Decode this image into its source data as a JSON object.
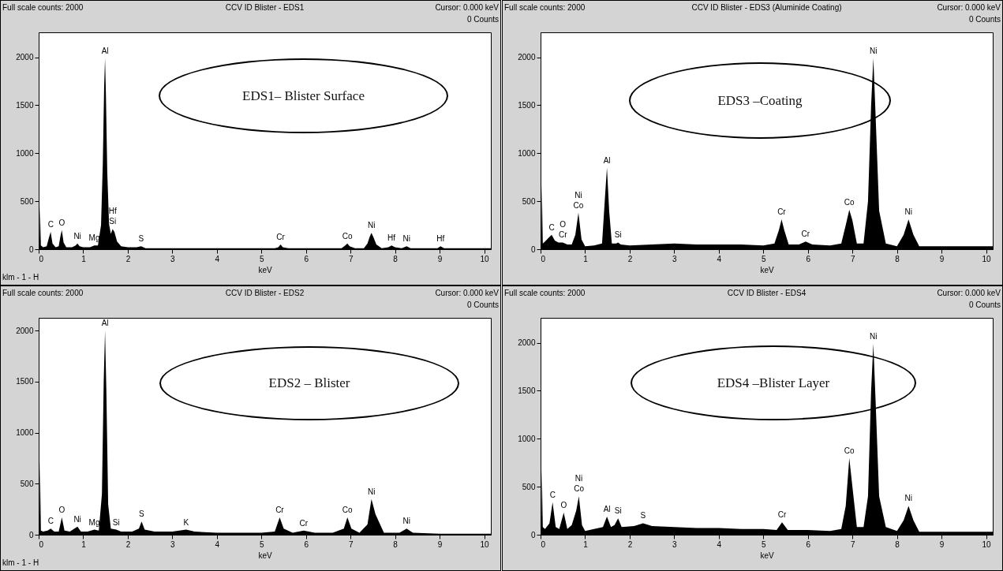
{
  "chart_data": [
    {
      "type": "area",
      "title": "CCV ID Blister - EDS1",
      "xlabel": "keV",
      "xlim": [
        0,
        10.15
      ],
      "xticks": [
        0,
        1,
        2,
        3,
        4,
        5,
        6,
        7,
        8,
        9,
        10
      ],
      "ylim": [
        0,
        2260
      ],
      "yticks": [
        0,
        500,
        1000,
        1500,
        2000
      ],
      "x": [
        0,
        0.02,
        0.03,
        0.05,
        0.1,
        0.18,
        0.23,
        0.27,
        0.31,
        0.38,
        0.45,
        0.49,
        0.52,
        0.56,
        0.62,
        0.75,
        0.83,
        0.87,
        0.92,
        1.0,
        1.15,
        1.25,
        1.33,
        1.4,
        1.44,
        1.47,
        1.49,
        1.51,
        1.54,
        1.58,
        1.62,
        1.66,
        1.7,
        1.76,
        1.85,
        2.0,
        2.2,
        2.3,
        2.4,
        2.7,
        3.0,
        3.5,
        4.0,
        4.5,
        5.0,
        5.3,
        5.38,
        5.43,
        5.48,
        5.6,
        6.0,
        6.5,
        6.8,
        6.88,
        6.93,
        6.98,
        7.1,
        7.3,
        7.38,
        7.43,
        7.47,
        7.52,
        7.58,
        7.7,
        7.85,
        7.92,
        8.0,
        8.15,
        8.26,
        8.35,
        8.6,
        8.95,
        9.02,
        9.1,
        9.5,
        10.0,
        10.15
      ],
      "series": [
        {
          "color": "#000000",
          "values": [
            0,
            100,
            450,
            40,
            20,
            30,
            120,
            180,
            60,
            20,
            30,
            140,
            200,
            70,
            20,
            20,
            40,
            60,
            30,
            20,
            20,
            40,
            40,
            250,
            900,
            1700,
            1990,
            1600,
            800,
            260,
            160,
            210,
            180,
            80,
            30,
            20,
            20,
            30,
            10,
            10,
            10,
            10,
            10,
            10,
            10,
            10,
            20,
            50,
            20,
            10,
            10,
            10,
            10,
            40,
            60,
            30,
            10,
            10,
            60,
            130,
            170,
            120,
            50,
            10,
            20,
            40,
            20,
            10,
            30,
            10,
            10,
            10,
            30,
            10,
            10,
            10,
            10
          ]
        }
      ],
      "annotations": [
        "Full scale counts: 2000",
        "Cursor:   0.000 keV",
        "0 Counts",
        "klm - 1 - H",
        "EDS1– Blister Surface",
        {
          "text": "C",
          "x": 0.27,
          "y": 180
        },
        {
          "text": "O",
          "x": 0.52,
          "y": 200
        },
        {
          "text": "Ni",
          "x": 0.87,
          "y": 60
        },
        {
          "text": "Mg",
          "x": 1.25,
          "y": 40
        },
        {
          "text": "Al",
          "x": 1.49,
          "y": 1990
        },
        {
          "text": "Si",
          "x": 1.66,
          "y": 210
        },
        {
          "text": "Hf",
          "x": 1.66,
          "y": 210
        },
        {
          "text": "S",
          "x": 2.3,
          "y": 30
        },
        {
          "text": "Cr",
          "x": 5.43,
          "y": 50
        },
        {
          "text": "Co",
          "x": 6.93,
          "y": 60
        },
        {
          "text": "Ni",
          "x": 7.47,
          "y": 170
        },
        {
          "text": "Hf",
          "x": 7.92,
          "y": 40
        },
        {
          "text": "Ni",
          "x": 8.26,
          "y": 30
        },
        {
          "text": "Hf",
          "x": 9.02,
          "y": 30
        }
      ]
    },
    {
      "type": "area",
      "title": "CCV ID Blister - EDS3 (Aluminide Coating)",
      "xlabel": "keV",
      "xlim": [
        0,
        10.15
      ],
      "xticks": [
        0,
        1,
        2,
        3,
        4,
        5,
        6,
        7,
        8,
        9,
        10
      ],
      "ylim": [
        0,
        2260
      ],
      "yticks": [
        0,
        500,
        1000,
        1500,
        2000
      ],
      "x": [
        0,
        0.02,
        0.03,
        0.05,
        0.1,
        0.18,
        0.25,
        0.32,
        0.4,
        0.5,
        0.6,
        0.7,
        0.78,
        0.85,
        0.92,
        1.0,
        1.2,
        1.38,
        1.44,
        1.49,
        1.54,
        1.6,
        1.7,
        1.74,
        1.8,
        2.0,
        2.5,
        3.0,
        3.5,
        4.0,
        4.5,
        5.0,
        5.25,
        5.35,
        5.41,
        5.47,
        5.57,
        5.8,
        5.95,
        6.1,
        6.5,
        6.75,
        6.85,
        6.93,
        7.0,
        7.1,
        7.25,
        7.35,
        7.42,
        7.47,
        7.52,
        7.6,
        7.75,
        8.0,
        8.15,
        8.26,
        8.37,
        8.5,
        9.0,
        9.5,
        10.0,
        10.15
      ],
      "series": [
        {
          "color": "#000000",
          "values": [
            0,
            200,
            670,
            60,
            80,
            120,
            150,
            90,
            70,
            70,
            50,
            50,
            150,
            380,
            100,
            30,
            40,
            60,
            500,
            850,
            400,
            60,
            60,
            70,
            50,
            40,
            50,
            60,
            50,
            50,
            50,
            40,
            60,
            200,
            310,
            200,
            50,
            50,
            80,
            50,
            40,
            60,
            250,
            410,
            300,
            60,
            60,
            500,
            1500,
            1990,
            1400,
            400,
            60,
            30,
            150,
            310,
            150,
            30,
            30,
            30,
            30,
            30
          ]
        }
      ],
      "annotations": [
        "Full scale counts: 2000",
        "Cursor:   0.000 keV",
        "0 Counts",
        "EDS3 –Coating",
        {
          "text": "C",
          "x": 0.25,
          "y": 150
        },
        {
          "text": "Cr",
          "x": 0.5,
          "y": 70
        },
        {
          "text": "O",
          "x": 0.5,
          "y": 70
        },
        {
          "text": "Co",
          "x": 0.85,
          "y": 380
        },
        {
          "text": "Ni",
          "x": 0.85,
          "y": 380
        },
        {
          "text": "Al",
          "x": 1.49,
          "y": 850
        },
        {
          "text": "Si",
          "x": 1.74,
          "y": 70
        },
        {
          "text": "Cr",
          "x": 5.41,
          "y": 310
        },
        {
          "text": "Cr",
          "x": 5.95,
          "y": 80
        },
        {
          "text": "Co",
          "x": 6.93,
          "y": 410
        },
        {
          "text": "Ni",
          "x": 7.47,
          "y": 1990
        },
        {
          "text": "Ni",
          "x": 8.26,
          "y": 310
        }
      ]
    },
    {
      "type": "area",
      "title": "CCV ID Blister - EDS2",
      "xlabel": "keV",
      "xlim": [
        0,
        10.15
      ],
      "xticks": [
        0,
        1,
        2,
        3,
        4,
        5,
        6,
        7,
        8,
        9,
        10
      ],
      "ylim": [
        0,
        2125
      ],
      "yticks": [
        0,
        500,
        1000,
        1500,
        2000
      ],
      "x": [
        0,
        0.02,
        0.03,
        0.05,
        0.1,
        0.2,
        0.27,
        0.35,
        0.45,
        0.52,
        0.58,
        0.7,
        0.87,
        0.95,
        1.1,
        1.25,
        1.35,
        1.42,
        1.46,
        1.49,
        1.52,
        1.56,
        1.62,
        1.74,
        1.85,
        2.1,
        2.25,
        2.31,
        2.38,
        2.6,
        3.0,
        3.31,
        3.5,
        4.0,
        4.5,
        5.0,
        5.3,
        5.41,
        5.5,
        5.7,
        5.95,
        6.2,
        6.6,
        6.85,
        6.93,
        7.02,
        7.2,
        7.38,
        7.47,
        7.56,
        7.75,
        8.1,
        8.26,
        8.4,
        9.0,
        9.5,
        10.0,
        10.15
      ],
      "series": [
        {
          "color": "#000000",
          "values": [
            0,
            200,
            730,
            40,
            30,
            40,
            60,
            30,
            30,
            170,
            40,
            30,
            80,
            30,
            30,
            50,
            40,
            400,
            1500,
            2000,
            1400,
            300,
            60,
            50,
            30,
            30,
            60,
            130,
            50,
            30,
            30,
            50,
            30,
            20,
            20,
            20,
            30,
            170,
            60,
            20,
            40,
            20,
            20,
            60,
            170,
            60,
            20,
            100,
            350,
            200,
            20,
            20,
            60,
            20,
            10,
            10,
            10,
            10
          ]
        }
      ],
      "annotations": [
        "Full scale counts: 2000",
        "Cursor:   0.000 keV",
        "0 Counts",
        "klm - 1 - H",
        "EDS2 – Blister",
        {
          "text": "C",
          "x": 0.27,
          "y": 60
        },
        {
          "text": "O",
          "x": 0.52,
          "y": 170
        },
        {
          "text": "Ni",
          "x": 0.87,
          "y": 80
        },
        {
          "text": "Mg",
          "x": 1.25,
          "y": 50
        },
        {
          "text": "Al",
          "x": 1.49,
          "y": 2000
        },
        {
          "text": "Si",
          "x": 1.74,
          "y": 50
        },
        {
          "text": "S",
          "x": 2.31,
          "y": 130
        },
        {
          "text": "K",
          "x": 3.31,
          "y": 50
        },
        {
          "text": "Cr",
          "x": 5.41,
          "y": 170
        },
        {
          "text": "Cr",
          "x": 5.95,
          "y": 40
        },
        {
          "text": "Co",
          "x": 6.93,
          "y": 170
        },
        {
          "text": "Ni",
          "x": 7.47,
          "y": 350
        },
        {
          "text": "Ni",
          "x": 8.26,
          "y": 60
        }
      ]
    },
    {
      "type": "area",
      "title": "CCV ID Blister - EDS4",
      "xlabel": "keV",
      "xlim": [
        0,
        10.15
      ],
      "xticks": [
        0,
        1,
        2,
        3,
        4,
        5,
        6,
        7,
        8,
        9,
        10
      ],
      "ylim": [
        0,
        2260
      ],
      "yticks": [
        0,
        500,
        1000,
        1500,
        2000
      ],
      "x": [
        0,
        0.02,
        0.03,
        0.05,
        0.1,
        0.2,
        0.27,
        0.34,
        0.42,
        0.52,
        0.6,
        0.7,
        0.8,
        0.86,
        0.93,
        1.0,
        1.2,
        1.4,
        1.49,
        1.58,
        1.66,
        1.74,
        1.82,
        2.1,
        2.3,
        2.5,
        3.0,
        3.5,
        4.0,
        4.5,
        5.0,
        5.3,
        5.42,
        5.55,
        6.0,
        6.5,
        6.75,
        6.85,
        6.93,
        7.0,
        7.1,
        7.25,
        7.35,
        7.42,
        7.47,
        7.52,
        7.6,
        7.75,
        8.0,
        8.15,
        8.26,
        8.37,
        8.5,
        9.0,
        9.5,
        10.0,
        10.15
      ],
      "series": [
        {
          "color": "#000000",
          "values": [
            0,
            200,
            680,
            80,
            60,
            120,
            340,
            80,
            60,
            230,
            60,
            100,
            250,
            400,
            100,
            40,
            60,
            80,
            190,
            80,
            100,
            170,
            80,
            90,
            120,
            90,
            80,
            70,
            70,
            60,
            60,
            50,
            130,
            50,
            50,
            40,
            60,
            300,
            800,
            500,
            80,
            80,
            400,
            1500,
            1990,
            1400,
            400,
            80,
            40,
            150,
            300,
            150,
            30,
            30,
            30,
            30,
            30
          ]
        }
      ],
      "annotations": [
        "Full scale counts: 2000",
        "Cursor:   0.000 keV",
        "0 Counts",
        "EDS4 –Blister Layer",
        {
          "text": "C",
          "x": 0.27,
          "y": 340
        },
        {
          "text": "O",
          "x": 0.52,
          "y": 230
        },
        {
          "text": "Co",
          "x": 0.86,
          "y": 400
        },
        {
          "text": "Ni",
          "x": 0.86,
          "y": 400
        },
        {
          "text": "Al",
          "x": 1.49,
          "y": 190
        },
        {
          "text": "Si",
          "x": 1.74,
          "y": 170
        },
        {
          "text": "S",
          "x": 2.3,
          "y": 120
        },
        {
          "text": "Cr",
          "x": 5.42,
          "y": 130
        },
        {
          "text": "Co",
          "x": 6.93,
          "y": 800
        },
        {
          "text": "Ni",
          "x": 7.47,
          "y": 1990
        },
        {
          "text": "Ni",
          "x": 8.26,
          "y": 300
        }
      ]
    }
  ]
}
